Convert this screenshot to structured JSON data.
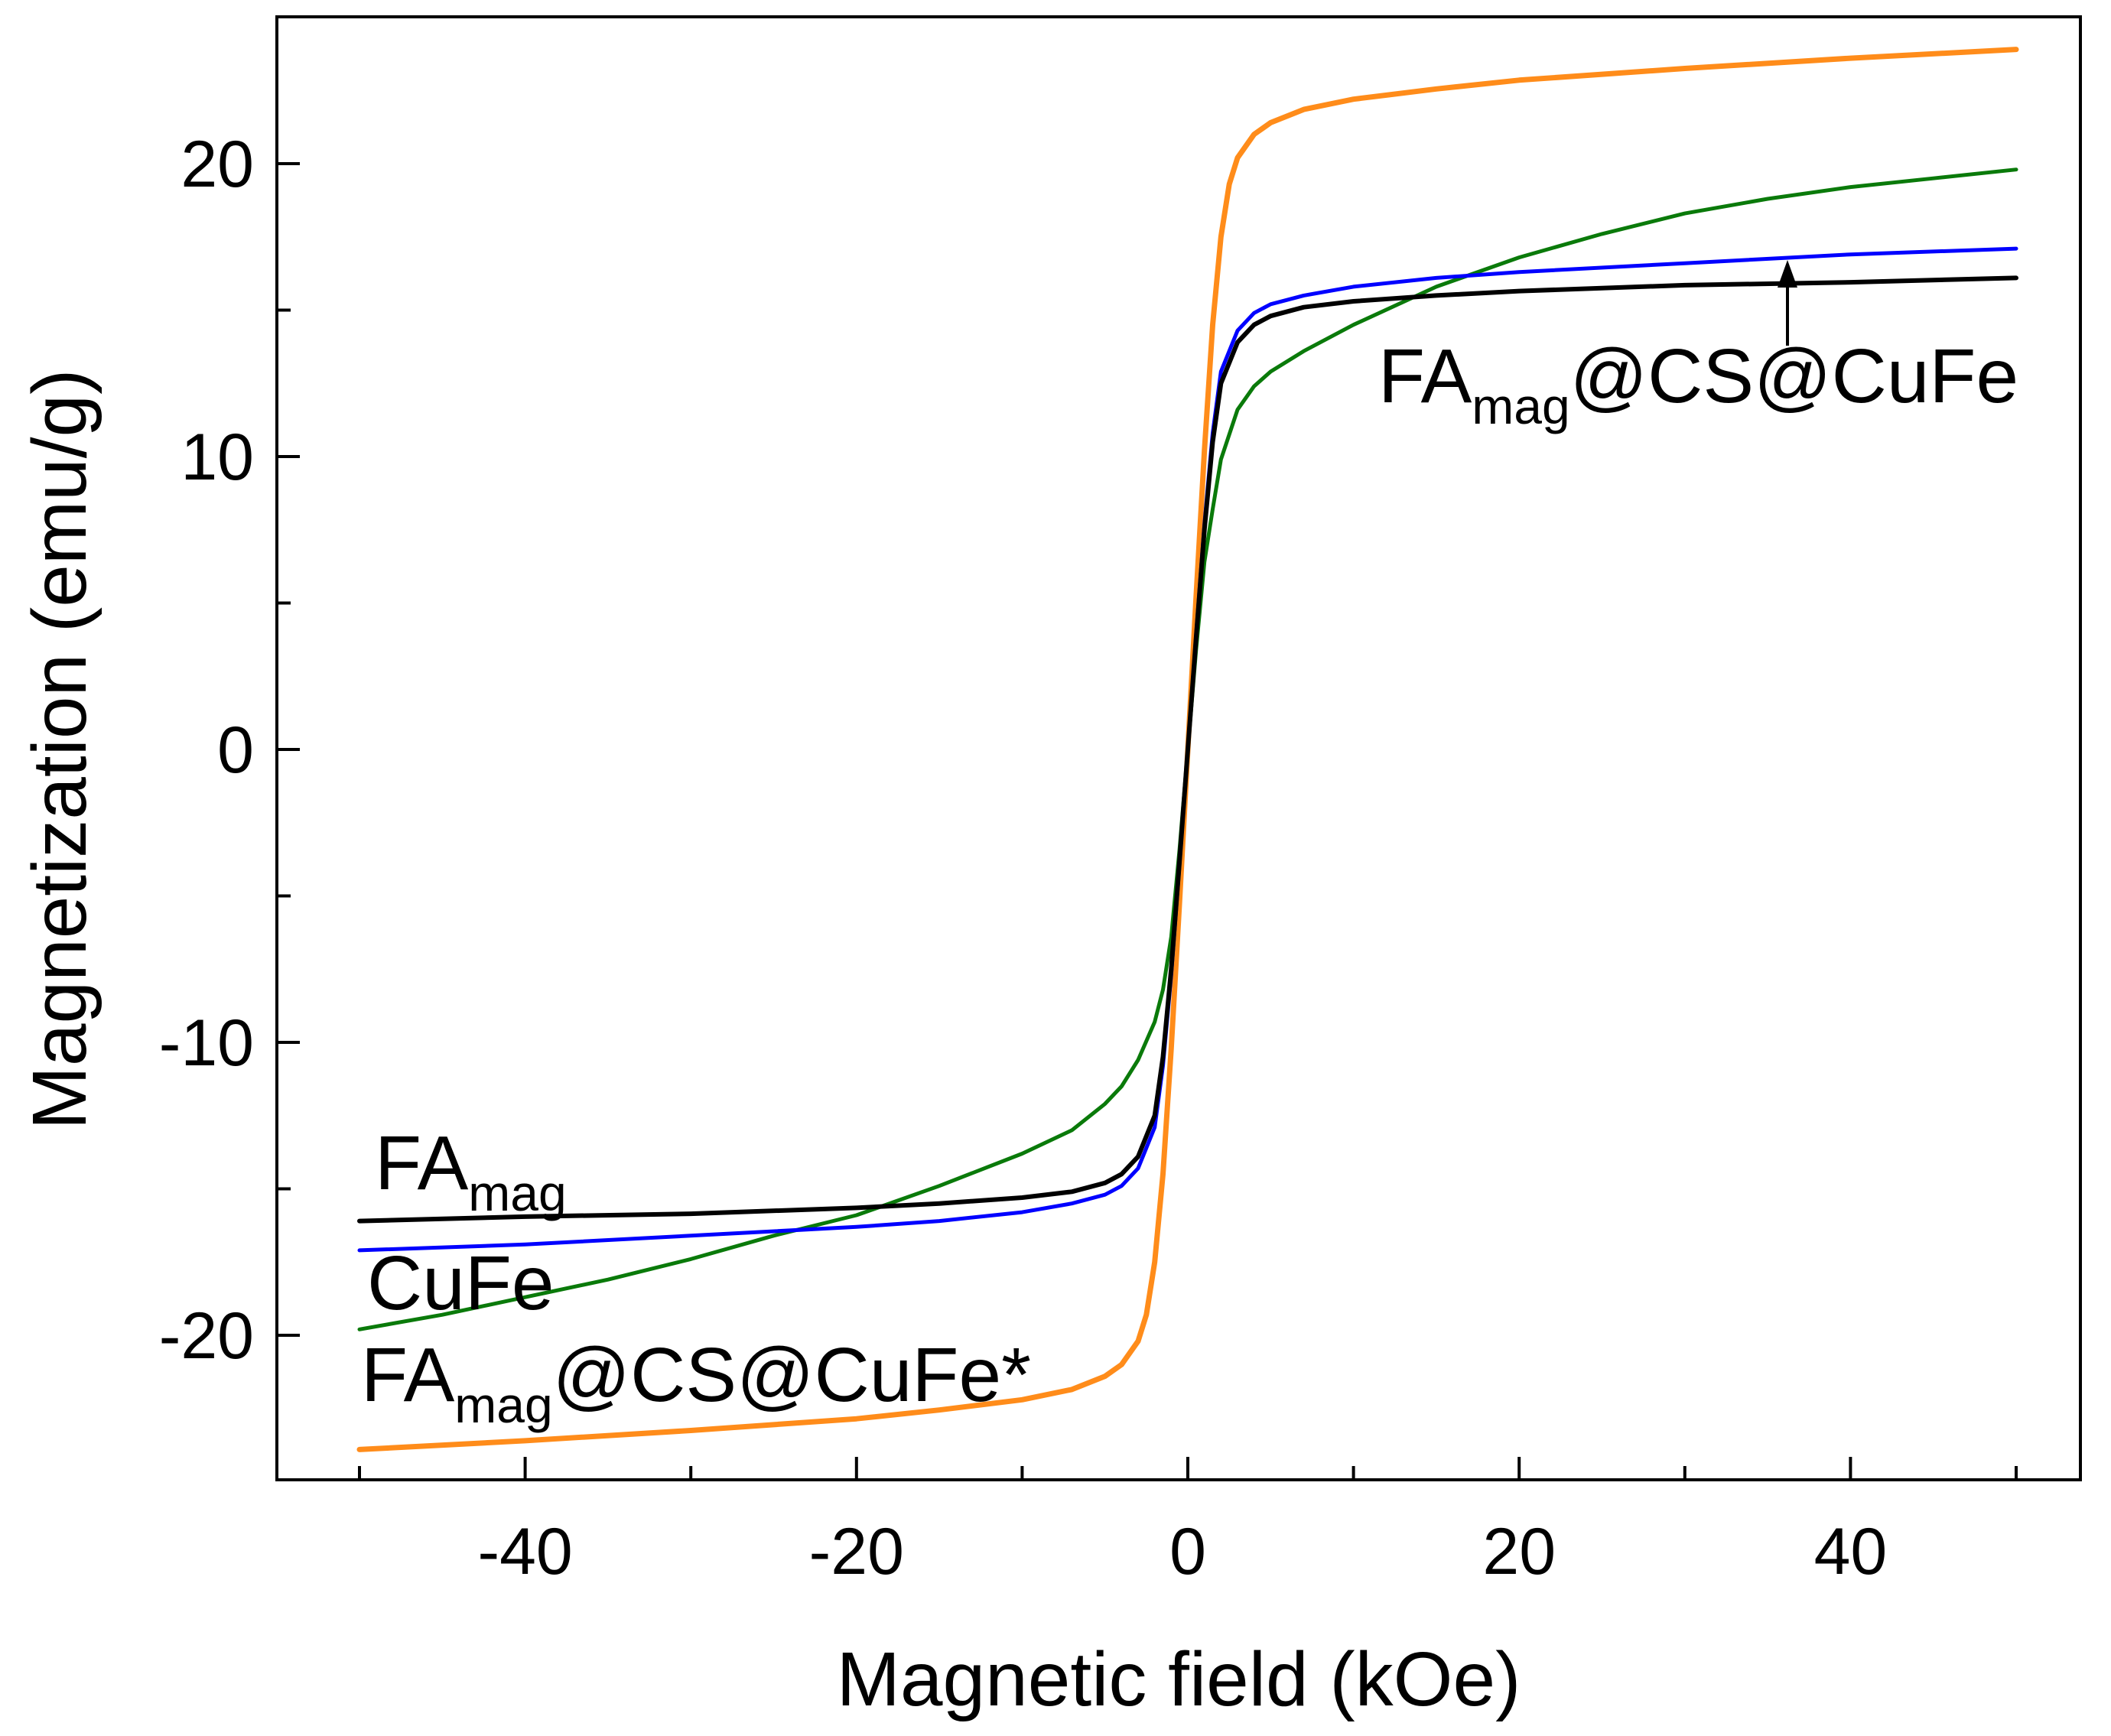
{
  "chart_data": {
    "type": "line",
    "title": "",
    "xlabel": "Magnetic field (kOe)",
    "ylabel": "Magnetization (emu/g)",
    "xlim": [
      -55,
      55
    ],
    "ylim": [
      -25,
      25
    ],
    "x_ticks": [
      -40,
      -20,
      0,
      20,
      40
    ],
    "x_tick_labels": [
      "-40",
      "-20",
      "0",
      "20",
      "40"
    ],
    "x_minor_ticks": [
      -50,
      -30,
      -10,
      10,
      30,
      50
    ],
    "y_ticks": [
      -20,
      -10,
      0,
      10,
      20
    ],
    "y_tick_labels": [
      "-20",
      "-10",
      "0",
      "10",
      "20"
    ],
    "y_minor_ticks": [
      -15,
      -5,
      5,
      15
    ],
    "grid": false,
    "legend": "none (inline annotations)",
    "series": [
      {
        "name": "FAmag",
        "color": "#000000",
        "x": [
          -50,
          -40,
          -30,
          -20,
          -15,
          -10,
          -7,
          -5,
          -4,
          -3,
          -2,
          -1.5,
          -1,
          -0.5,
          0,
          0.5,
          1,
          1.5,
          2,
          3,
          4,
          5,
          7,
          10,
          15,
          20,
          30,
          40,
          50
        ],
        "y": [
          -16.1,
          -15.95,
          -15.85,
          -15.65,
          -15.5,
          -15.3,
          -15.1,
          -14.8,
          -14.5,
          -13.9,
          -12.5,
          -10.5,
          -7.5,
          -3.8,
          0,
          3.8,
          7.5,
          10.5,
          12.5,
          13.9,
          14.5,
          14.8,
          15.1,
          15.3,
          15.5,
          15.65,
          15.85,
          15.95,
          16.1
        ]
      },
      {
        "name": "CuFe",
        "color": "#0000ff",
        "x": [
          -50,
          -40,
          -30,
          -20,
          -15,
          -10,
          -7,
          -5,
          -4,
          -3,
          -2,
          -1.5,
          -1,
          -0.5,
          0,
          0.5,
          1,
          1.5,
          2,
          3,
          4,
          5,
          7,
          10,
          15,
          20,
          30,
          40,
          50
        ],
        "y": [
          -17.1,
          -16.9,
          -16.6,
          -16.3,
          -16.1,
          -15.8,
          -15.5,
          -15.2,
          -14.9,
          -14.3,
          -12.9,
          -10.8,
          -7.7,
          -3.9,
          0,
          3.9,
          7.7,
          10.8,
          12.9,
          14.3,
          14.9,
          15.2,
          15.5,
          15.8,
          16.1,
          16.3,
          16.6,
          16.9,
          17.1
        ]
      },
      {
        "name": "FAmag@CS@CuFe",
        "color": "#0a7a0a",
        "x": [
          -50,
          -45,
          -40,
          -35,
          -30,
          -25,
          -20,
          -15,
          -10,
          -7,
          -5,
          -4,
          -3,
          -2,
          -1.5,
          -1,
          -0.5,
          0,
          0.5,
          1,
          1.5,
          2,
          3,
          4,
          5,
          7,
          10,
          15,
          20,
          25,
          30,
          35,
          40,
          45,
          50
        ],
        "y": [
          -19.8,
          -19.3,
          -18.7,
          -18.1,
          -17.4,
          -16.6,
          -15.9,
          -14.9,
          -13.8,
          -13.0,
          -12.1,
          -11.5,
          -10.6,
          -9.3,
          -8.2,
          -6.4,
          -3.4,
          0,
          3.4,
          6.4,
          8.2,
          9.9,
          11.6,
          12.4,
          12.9,
          13.6,
          14.5,
          15.8,
          16.8,
          17.6,
          18.3,
          18.8,
          19.2,
          19.5,
          19.8
        ]
      },
      {
        "name": "FAmag@CS@CuFe*",
        "color": "#ff8c1a",
        "x": [
          -50,
          -40,
          -30,
          -20,
          -15,
          -10,
          -7,
          -5,
          -4,
          -3,
          -2.5,
          -2,
          -1.5,
          -1,
          -0.5,
          0,
          0.5,
          1,
          1.5,
          2,
          2.5,
          3,
          4,
          5,
          7,
          10,
          15,
          20,
          30,
          40,
          50
        ],
        "y": [
          -23.9,
          -23.6,
          -23.25,
          -22.85,
          -22.55,
          -22.2,
          -21.85,
          -21.4,
          -21.0,
          -20.2,
          -19.3,
          -17.5,
          -14.5,
          -10.2,
          -5.2,
          0,
          5.2,
          10.2,
          14.5,
          17.5,
          19.3,
          20.2,
          21.0,
          21.4,
          21.85,
          22.2,
          22.55,
          22.85,
          23.25,
          23.6,
          23.9
        ]
      }
    ],
    "annotations": {
      "famag": {
        "main": "FA",
        "sub": "mag"
      },
      "cufe": {
        "main": "CuFe"
      },
      "composite_star": {
        "main": "FA",
        "sub": "mag",
        "rest": "@CS@CuFe*"
      },
      "composite": {
        "main": "FA",
        "sub": "mag",
        "rest": "@CS@CuFe"
      }
    }
  }
}
